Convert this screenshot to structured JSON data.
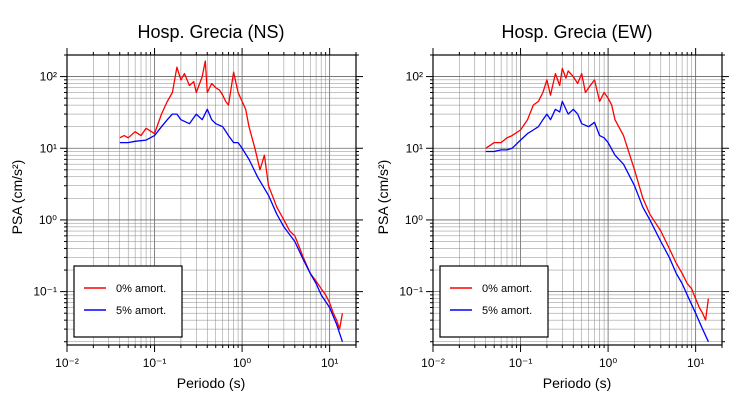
{
  "chart_data": [
    {
      "type": "line",
      "title": "Hosp. Grecia (NS)",
      "xlabel": "Periodo (s)",
      "ylabel": "PSA (cm/s²)",
      "xscale": "log",
      "yscale": "log",
      "xlim": [
        0.01,
        20
      ],
      "ylim": [
        0.018,
        200
      ],
      "grid": true,
      "legend_position": "bottom-left",
      "x_tick_labels": [
        "10⁻²",
        "10⁻¹",
        "10⁰",
        "10¹"
      ],
      "y_tick_labels": [
        "10⁻¹",
        "10⁰",
        "10¹",
        "10²"
      ],
      "series": [
        {
          "name": "0% amort.",
          "color": "#ff0000",
          "x": [
            0.04,
            0.045,
            0.05,
            0.06,
            0.07,
            0.08,
            0.1,
            0.12,
            0.14,
            0.16,
            0.18,
            0.2,
            0.22,
            0.25,
            0.28,
            0.3,
            0.35,
            0.38,
            0.4,
            0.45,
            0.5,
            0.55,
            0.6,
            0.65,
            0.7,
            0.8,
            0.9,
            1.0,
            1.1,
            1.2,
            1.4,
            1.6,
            1.8,
            2.0,
            2.5,
            3.0,
            3.5,
            4.0,
            5.0,
            6.0,
            7.0,
            8.0,
            9.0,
            10.0,
            11.0,
            12.0,
            13.0,
            14.0
          ],
          "y": [
            14,
            15,
            14,
            17,
            15,
            19,
            16,
            30,
            45,
            60,
            135,
            90,
            110,
            75,
            85,
            60,
            100,
            165,
            60,
            80,
            70,
            65,
            55,
            45,
            40,
            115,
            60,
            45,
            35,
            20,
            10,
            5,
            8,
            3,
            1.5,
            1.0,
            0.7,
            0.6,
            0.3,
            0.18,
            0.14,
            0.11,
            0.09,
            0.07,
            0.05,
            0.04,
            0.03,
            0.05
          ]
        },
        {
          "name": "5% amort.",
          "color": "#0000ff",
          "x": [
            0.04,
            0.05,
            0.06,
            0.08,
            0.1,
            0.12,
            0.14,
            0.16,
            0.18,
            0.2,
            0.25,
            0.3,
            0.35,
            0.4,
            0.45,
            0.5,
            0.6,
            0.7,
            0.8,
            0.9,
            1.0,
            1.2,
            1.5,
            2.0,
            2.5,
            3.0,
            4.0,
            5.0,
            6.0,
            7.0,
            8.0,
            10.0,
            12.0,
            14.0
          ],
          "y": [
            12,
            12,
            12.5,
            13,
            15,
            20,
            25,
            30,
            30,
            25,
            22,
            30,
            25,
            35,
            25,
            22,
            20,
            15,
            12,
            12,
            10,
            7,
            4,
            2.2,
            1.2,
            0.8,
            0.5,
            0.28,
            0.18,
            0.13,
            0.09,
            0.06,
            0.035,
            0.02
          ]
        }
      ]
    },
    {
      "type": "line",
      "title": "Hosp. Grecia (EW)",
      "xlabel": "Periodo (s)",
      "ylabel": "PSA (cm/s²)",
      "xscale": "log",
      "yscale": "log",
      "xlim": [
        0.01,
        20
      ],
      "ylim": [
        0.018,
        200
      ],
      "grid": true,
      "legend_position": "bottom-left",
      "x_tick_labels": [
        "10⁻²",
        "10⁻¹",
        "10⁰",
        "10¹"
      ],
      "y_tick_labels": [
        "10⁻¹",
        "10⁰",
        "10¹",
        "10²"
      ],
      "series": [
        {
          "name": "0% amort.",
          "color": "#ff0000",
          "x": [
            0.04,
            0.045,
            0.05,
            0.06,
            0.07,
            0.08,
            0.1,
            0.12,
            0.14,
            0.16,
            0.18,
            0.2,
            0.22,
            0.25,
            0.28,
            0.3,
            0.33,
            0.35,
            0.4,
            0.45,
            0.5,
            0.55,
            0.6,
            0.7,
            0.8,
            0.9,
            1.0,
            1.1,
            1.2,
            1.5,
            2.0,
            2.5,
            3.0,
            3.5,
            4.0,
            5.0,
            6.0,
            7.0,
            8.0,
            9.0,
            10.0,
            11.0,
            12.0,
            13.0,
            14.0
          ],
          "y": [
            10,
            11,
            12,
            12,
            14,
            15,
            18,
            25,
            40,
            45,
            60,
            90,
            55,
            110,
            75,
            130,
            95,
            120,
            100,
            80,
            110,
            60,
            70,
            90,
            45,
            60,
            50,
            40,
            25,
            15,
            5,
            2.0,
            1.2,
            0.9,
            0.7,
            0.4,
            0.25,
            0.18,
            0.13,
            0.11,
            0.08,
            0.06,
            0.05,
            0.04,
            0.08
          ]
        },
        {
          "name": "5% amort.",
          "color": "#0000ff",
          "x": [
            0.04,
            0.05,
            0.06,
            0.07,
            0.08,
            0.1,
            0.12,
            0.14,
            0.16,
            0.18,
            0.2,
            0.22,
            0.25,
            0.28,
            0.3,
            0.35,
            0.4,
            0.45,
            0.5,
            0.6,
            0.7,
            0.8,
            0.9,
            1.0,
            1.2,
            1.5,
            2.0,
            2.5,
            3.0,
            4.0,
            5.0,
            6.0,
            7.0,
            8.0,
            10.0,
            12.0,
            14.0
          ],
          "y": [
            9,
            9,
            9.5,
            9.5,
            10,
            13,
            16,
            18,
            20,
            25,
            30,
            25,
            35,
            32,
            45,
            30,
            35,
            30,
            22,
            20,
            23,
            15,
            14,
            12,
            8,
            6,
            3,
            1.5,
            1.0,
            0.5,
            0.3,
            0.18,
            0.13,
            0.09,
            0.05,
            0.03,
            0.02
          ]
        }
      ]
    }
  ]
}
